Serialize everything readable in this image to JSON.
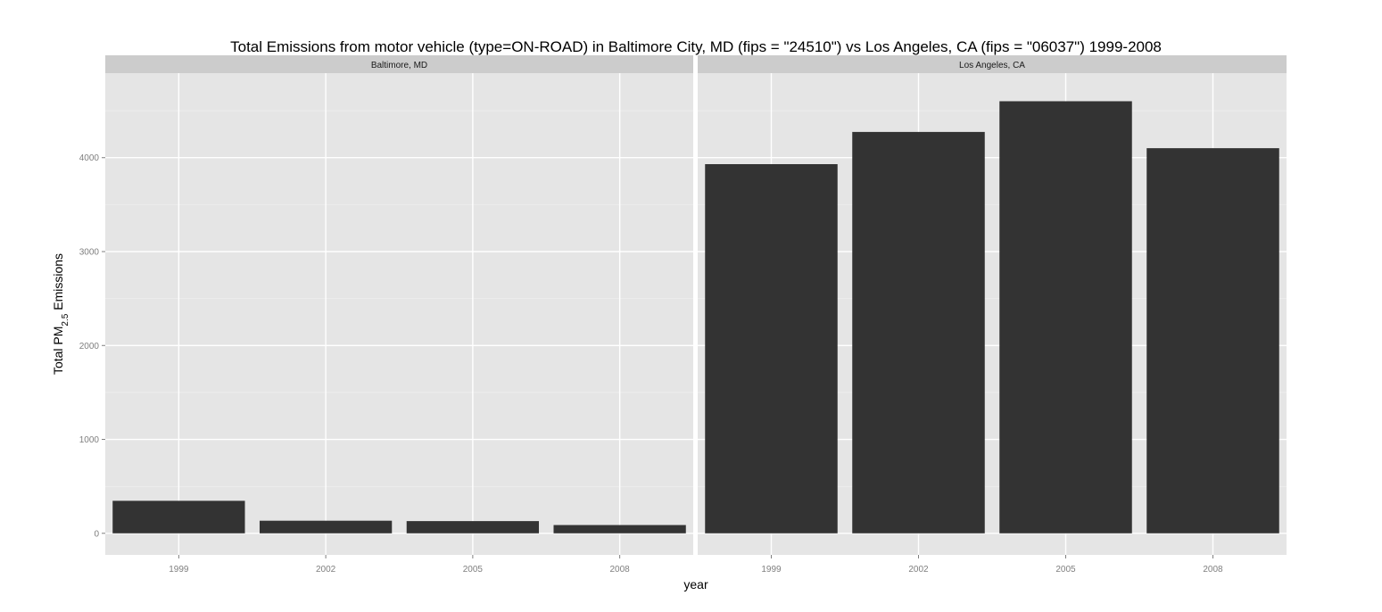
{
  "chart_data": {
    "type": "bar",
    "title": "Total Emissions from motor vehicle (type=ON-ROAD) in Baltimore City, MD (fips = \"24510\") vs Los Angeles, CA (fips = \"06037\")  1999-2008",
    "xlabel": "year",
    "ylabel": {
      "prefix": "Total PM",
      "subscript": "2.5",
      "suffix": " Emissions"
    },
    "categories": [
      "1999",
      "2002",
      "2005",
      "2008"
    ],
    "ylim": [
      -230,
      4900
    ],
    "yticks": [
      0,
      1000,
      2000,
      3000,
      4000
    ],
    "grid": true,
    "bar_color": "#333333",
    "panel_background": "#e5e5e5",
    "strip_background": "#cccccc",
    "facets": [
      {
        "name": "Baltimore, MD",
        "values": [
          346,
          134,
          130,
          88
        ]
      },
      {
        "name": "Los Angeles, CA",
        "values": [
          3931,
          4274,
          4601,
          4101
        ]
      }
    ]
  }
}
